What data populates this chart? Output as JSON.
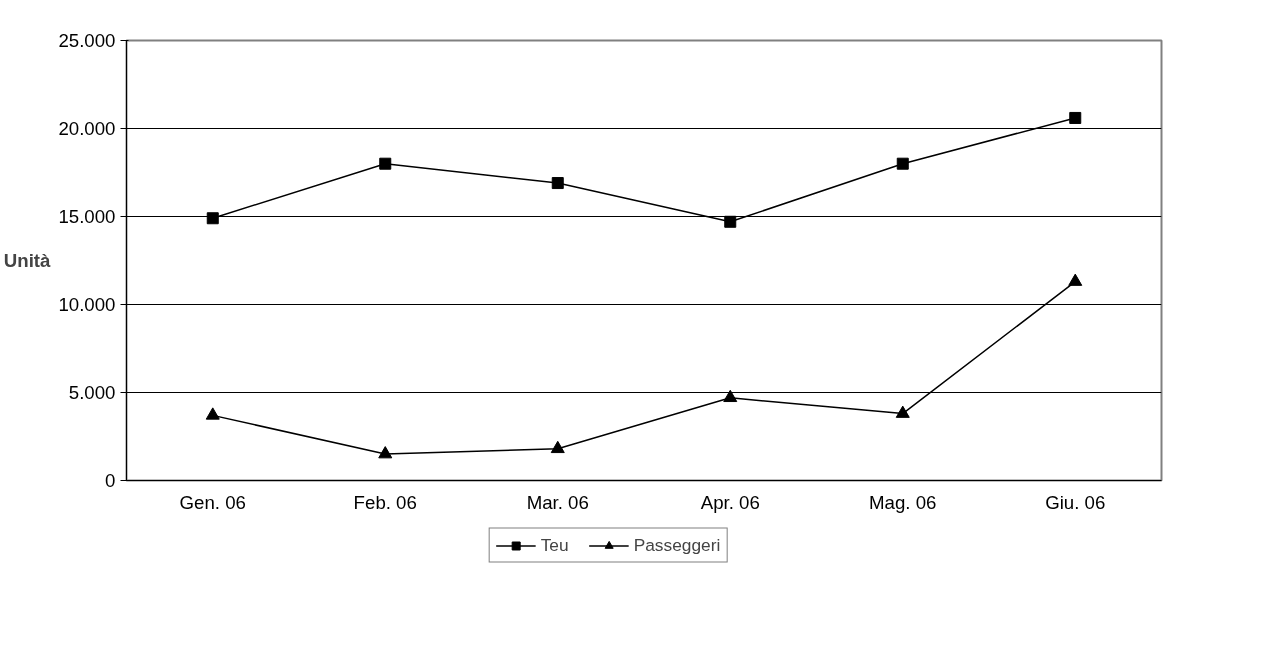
{
  "chart_data": {
    "type": "line",
    "ylabel": "Unità",
    "categories": [
      "Gen. 06",
      "Feb. 06",
      "Mar. 06",
      "Apr. 06",
      "Mag. 06",
      "Giu. 06"
    ],
    "series": [
      {
        "name": "Teu",
        "color": "#000000",
        "marker": "square",
        "values": [
          14900,
          18000,
          16900,
          14700,
          18000,
          20600
        ]
      },
      {
        "name": "Passeggeri",
        "color": "#000000",
        "marker": "triangle",
        "values": [
          3700,
          1500,
          1800,
          4700,
          3800,
          11300
        ]
      }
    ],
    "ylim": [
      0,
      25000
    ],
    "yticks": [
      0,
      {
        "value": 5000,
        "label": "5.000"
      },
      {
        "value": 10000,
        "label": "10.000"
      },
      {
        "value": 15000,
        "label": "15.000"
      },
      {
        "value": 20000,
        "label": "20.000"
      },
      {
        "value": 25000,
        "label": "25.000"
      }
    ],
    "grid": "y",
    "legend": "bottom",
    "line_style": "solid"
  }
}
